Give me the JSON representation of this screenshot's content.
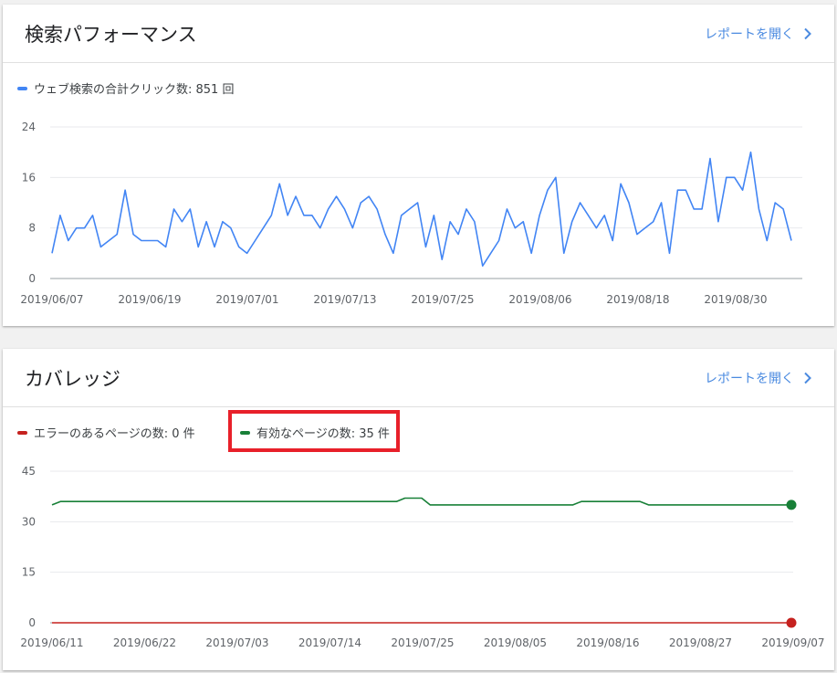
{
  "performance": {
    "title": "検索パフォーマンス",
    "report_link": "レポートを開く",
    "legend": "ウェブ検索の合計クリック数: 851 回",
    "colors": {
      "line": "#4285f4"
    },
    "chart_data": {
      "type": "line",
      "ylim": [
        0,
        24
      ],
      "yticks": [
        0,
        8,
        16,
        24
      ],
      "xtick_labels": [
        "2019/06/07",
        "2019/06/19",
        "2019/07/01",
        "2019/07/13",
        "2019/07/25",
        "2019/08/06",
        "2019/08/18",
        "2019/08/30"
      ],
      "x_start": "2019/06/07",
      "x_end": "2019/09/04",
      "series": [
        {
          "name": "ウェブ検索の合計クリック数",
          "values": [
            4,
            10,
            6,
            8,
            8,
            10,
            5,
            6,
            7,
            14,
            7,
            6,
            6,
            6,
            5,
            11,
            9,
            11,
            5,
            9,
            5,
            9,
            8,
            5,
            4,
            6,
            8,
            10,
            15,
            10,
            13,
            10,
            10,
            8,
            11,
            13,
            11,
            8,
            12,
            13,
            11,
            7,
            4,
            10,
            11,
            12,
            5,
            10,
            3,
            9,
            7,
            11,
            9,
            2,
            4,
            6,
            11,
            8,
            9,
            4,
            10,
            14,
            16,
            4,
            9,
            12,
            10,
            8,
            10,
            6,
            15,
            12,
            7,
            8,
            9,
            12,
            4,
            14,
            14,
            11,
            11,
            19,
            9,
            16,
            16,
            14,
            20,
            11,
            6,
            12,
            11,
            6
          ]
        }
      ]
    }
  },
  "coverage": {
    "title": "カバレッジ",
    "report_link": "レポートを開く",
    "legend_error": "エラーのあるページの数: 0 件",
    "legend_valid": "有効なページの数: 35 件",
    "colors": {
      "error": "#c5221f",
      "valid": "#188038",
      "highlight": "#e8202a"
    },
    "chart_data": {
      "type": "line",
      "ylim": [
        0,
        45
      ],
      "yticks": [
        0,
        15,
        30,
        45
      ],
      "xtick_labels": [
        "2019/06/11",
        "2019/06/22",
        "2019/07/03",
        "2019/07/14",
        "2019/07/25",
        "2019/08/05",
        "2019/08/16",
        "2019/08/27",
        "2019/09/07"
      ],
      "x_start": "2019/06/11",
      "x_end": "2019/09/07",
      "series": [
        {
          "name": "有効なページの数",
          "values": [
            35,
            36,
            36,
            36,
            36,
            36,
            36,
            36,
            36,
            36,
            36,
            36,
            36,
            36,
            36,
            36,
            36,
            36,
            36,
            36,
            36,
            36,
            36,
            36,
            36,
            36,
            36,
            36,
            36,
            36,
            36,
            36,
            36,
            36,
            36,
            36,
            36,
            36,
            36,
            36,
            36,
            36,
            37,
            37,
            37,
            35,
            35,
            35,
            35,
            35,
            35,
            35,
            35,
            35,
            35,
            35,
            35,
            35,
            35,
            35,
            35,
            35,
            35,
            36,
            36,
            36,
            36,
            36,
            36,
            36,
            36,
            35,
            35,
            35,
            35,
            35,
            35,
            35,
            35,
            35,
            35,
            35,
            35,
            35,
            35,
            35,
            35,
            35,
            35
          ]
        },
        {
          "name": "エラーのあるページの数",
          "values": [
            0,
            0,
            0,
            0,
            0,
            0,
            0,
            0,
            0,
            0,
            0,
            0,
            0,
            0,
            0,
            0,
            0,
            0,
            0,
            0,
            0,
            0,
            0,
            0,
            0,
            0,
            0,
            0,
            0,
            0,
            0,
            0,
            0,
            0,
            0,
            0,
            0,
            0,
            0,
            0,
            0,
            0,
            0,
            0,
            0,
            0,
            0,
            0,
            0,
            0,
            0,
            0,
            0,
            0,
            0,
            0,
            0,
            0,
            0,
            0,
            0,
            0,
            0,
            0,
            0,
            0,
            0,
            0,
            0,
            0,
            0,
            0,
            0,
            0,
            0,
            0,
            0,
            0,
            0,
            0,
            0,
            0,
            0,
            0,
            0,
            0,
            0,
            0,
            0
          ]
        }
      ]
    }
  }
}
